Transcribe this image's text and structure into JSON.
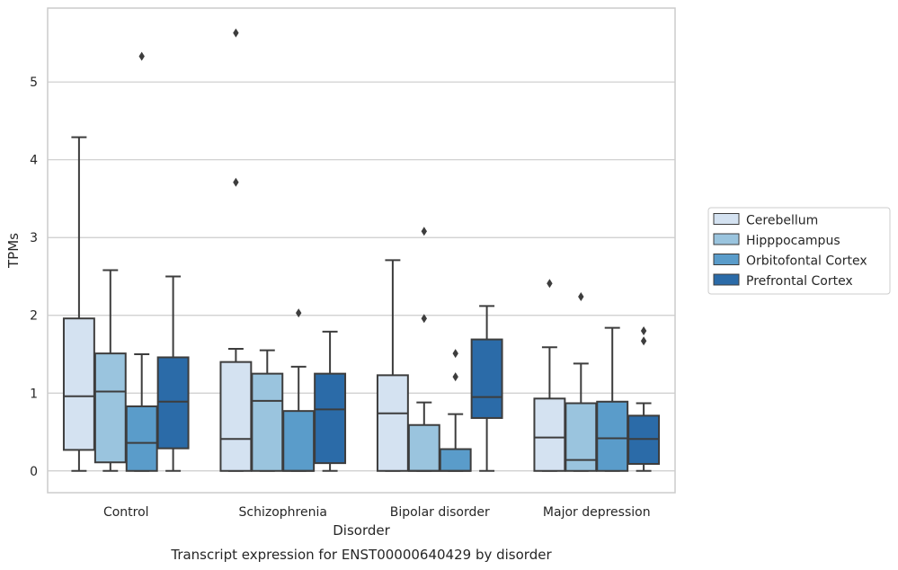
{
  "chart_data": {
    "type": "box",
    "title": "Transcript expression for ENST00000640429 by disorder",
    "xlabel": "Disorder",
    "ylabel": "TPMs",
    "ylim": [
      -0.28,
      5.95
    ],
    "yticks": [
      0,
      1,
      2,
      3,
      4,
      5
    ],
    "categories": [
      "Control",
      "Schizophrenia",
      "Bipolar disorder",
      "Major depression"
    ],
    "legend_position": "right",
    "grid": true,
    "series": [
      {
        "name": "Cerebellum",
        "color": "#d4e2f1",
        "boxes": [
          {
            "whislo": 0.0,
            "q1": 0.27,
            "med": 0.96,
            "q3": 1.96,
            "whishi": 4.29,
            "fliers": []
          },
          {
            "whislo": 0.0,
            "q1": 0.0,
            "med": 0.41,
            "q3": 1.4,
            "whishi": 1.57,
            "fliers": [
              3.71,
              5.63
            ]
          },
          {
            "whislo": 0.0,
            "q1": 0.0,
            "med": 0.74,
            "q3": 1.23,
            "whishi": 2.71,
            "fliers": []
          },
          {
            "whislo": 0.0,
            "q1": 0.0,
            "med": 0.43,
            "q3": 0.93,
            "whishi": 1.59,
            "fliers": [
              2.41
            ]
          }
        ]
      },
      {
        "name": "Hipppocampus",
        "color": "#9ac4de",
        "boxes": [
          {
            "whislo": 0.0,
            "q1": 0.11,
            "med": 1.02,
            "q3": 1.51,
            "whishi": 2.58,
            "fliers": []
          },
          {
            "whislo": 0.0,
            "q1": 0.0,
            "med": 0.9,
            "q3": 1.25,
            "whishi": 1.55,
            "fliers": []
          },
          {
            "whislo": 0.0,
            "q1": 0.0,
            "med": 0.0,
            "q3": 0.59,
            "whishi": 0.88,
            "fliers": [
              1.96,
              3.08
            ]
          },
          {
            "whislo": 0.0,
            "q1": 0.0,
            "med": 0.14,
            "q3": 0.87,
            "whishi": 1.38,
            "fliers": [
              2.24
            ]
          }
        ]
      },
      {
        "name": "Orbitofontal Cortex",
        "color": "#5a9cca",
        "boxes": [
          {
            "whislo": 0.0,
            "q1": 0.0,
            "med": 0.36,
            "q3": 0.83,
            "whishi": 1.5,
            "fliers": [
              5.33
            ]
          },
          {
            "whislo": 0.0,
            "q1": 0.0,
            "med": 0.0,
            "q3": 0.77,
            "whishi": 1.34,
            "fliers": [
              2.03
            ]
          },
          {
            "whislo": 0.0,
            "q1": 0.0,
            "med": 0.0,
            "q3": 0.28,
            "whishi": 0.73,
            "fliers": [
              1.21,
              1.51
            ]
          },
          {
            "whislo": 0.0,
            "q1": 0.0,
            "med": 0.42,
            "q3": 0.89,
            "whishi": 1.84,
            "fliers": []
          }
        ]
      },
      {
        "name": "Prefrontal Cortex",
        "color": "#2b6ba8",
        "boxes": [
          {
            "whislo": 0.0,
            "q1": 0.29,
            "med": 0.89,
            "q3": 1.46,
            "whishi": 2.5,
            "fliers": []
          },
          {
            "whislo": 0.0,
            "q1": 0.1,
            "med": 0.79,
            "q3": 1.25,
            "whishi": 1.79,
            "fliers": []
          },
          {
            "whislo": 0.0,
            "q1": 0.68,
            "med": 0.95,
            "q3": 1.69,
            "whishi": 2.12,
            "fliers": []
          },
          {
            "whislo": 0.0,
            "q1": 0.09,
            "med": 0.41,
            "q3": 0.71,
            "whishi": 0.87,
            "fliers": [
              1.67,
              1.8
            ]
          }
        ]
      }
    ]
  }
}
